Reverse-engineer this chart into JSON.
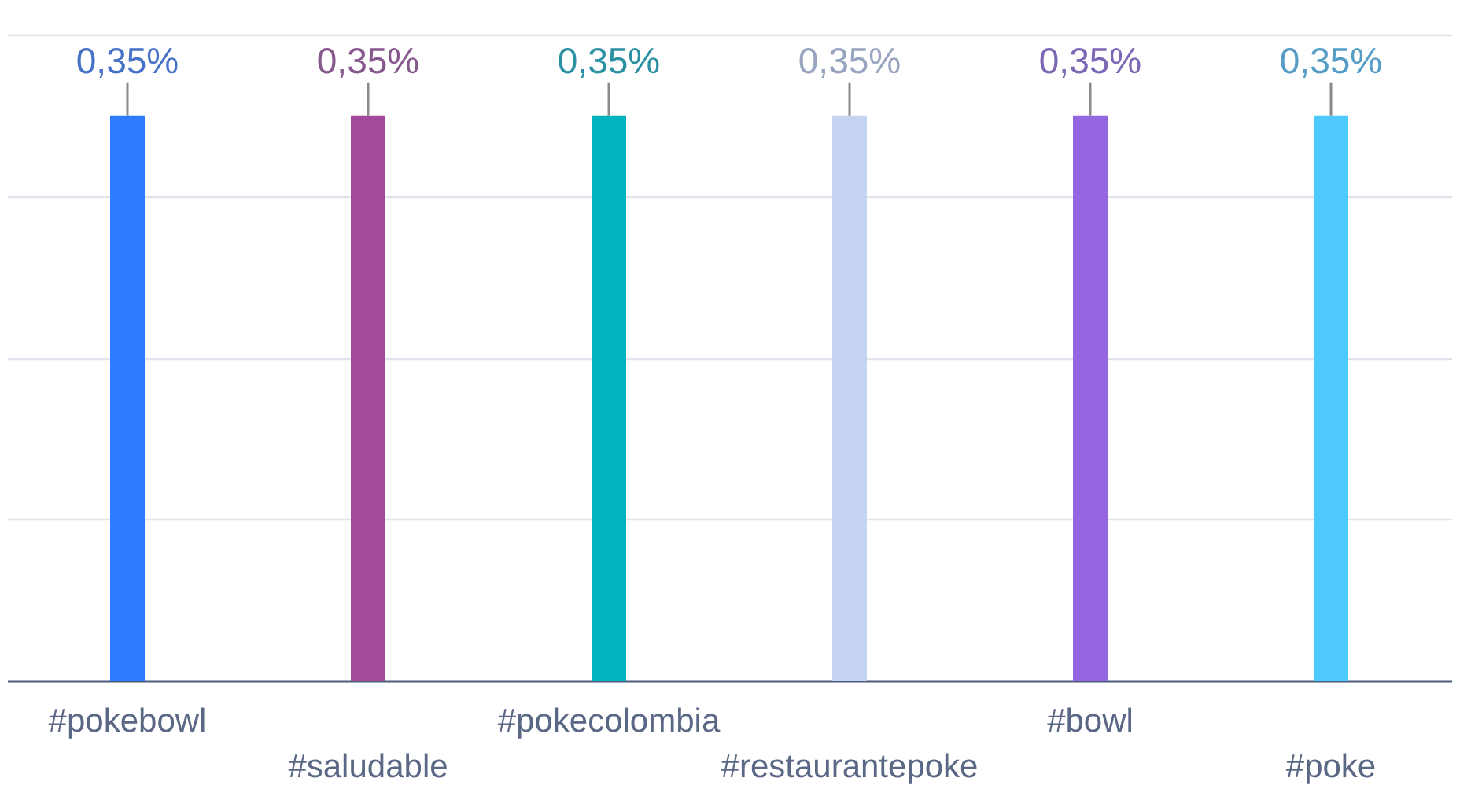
{
  "chart_data": {
    "type": "bar",
    "categories": [
      "#pokebowl",
      "#saludable",
      "#pokecolombia",
      "#restaurantepoke",
      "#bowl",
      "#poke"
    ],
    "values": [
      0.35,
      0.35,
      0.35,
      0.35,
      0.35,
      0.35
    ],
    "value_labels": [
      "0,35%",
      "0,35%",
      "0,35%",
      "0,35%",
      "0,35%",
      "0,35%"
    ],
    "colors": [
      "#2f7bff",
      "#a54a98",
      "#00b3bd",
      "#c5d3f2",
      "#9467e0",
      "#4dc9fe"
    ],
    "ylim": [
      0,
      0.4
    ],
    "yticks": [
      {
        "value": 0,
        "label": null
      },
      {
        "value": 0.1,
        "label": null
      },
      {
        "value": 0.2,
        "label": null
      },
      {
        "value": 0.3,
        "label": null
      },
      {
        "value": 0.4,
        "label": null
      }
    ],
    "grid": "y",
    "tick_labels": "x"
  }
}
